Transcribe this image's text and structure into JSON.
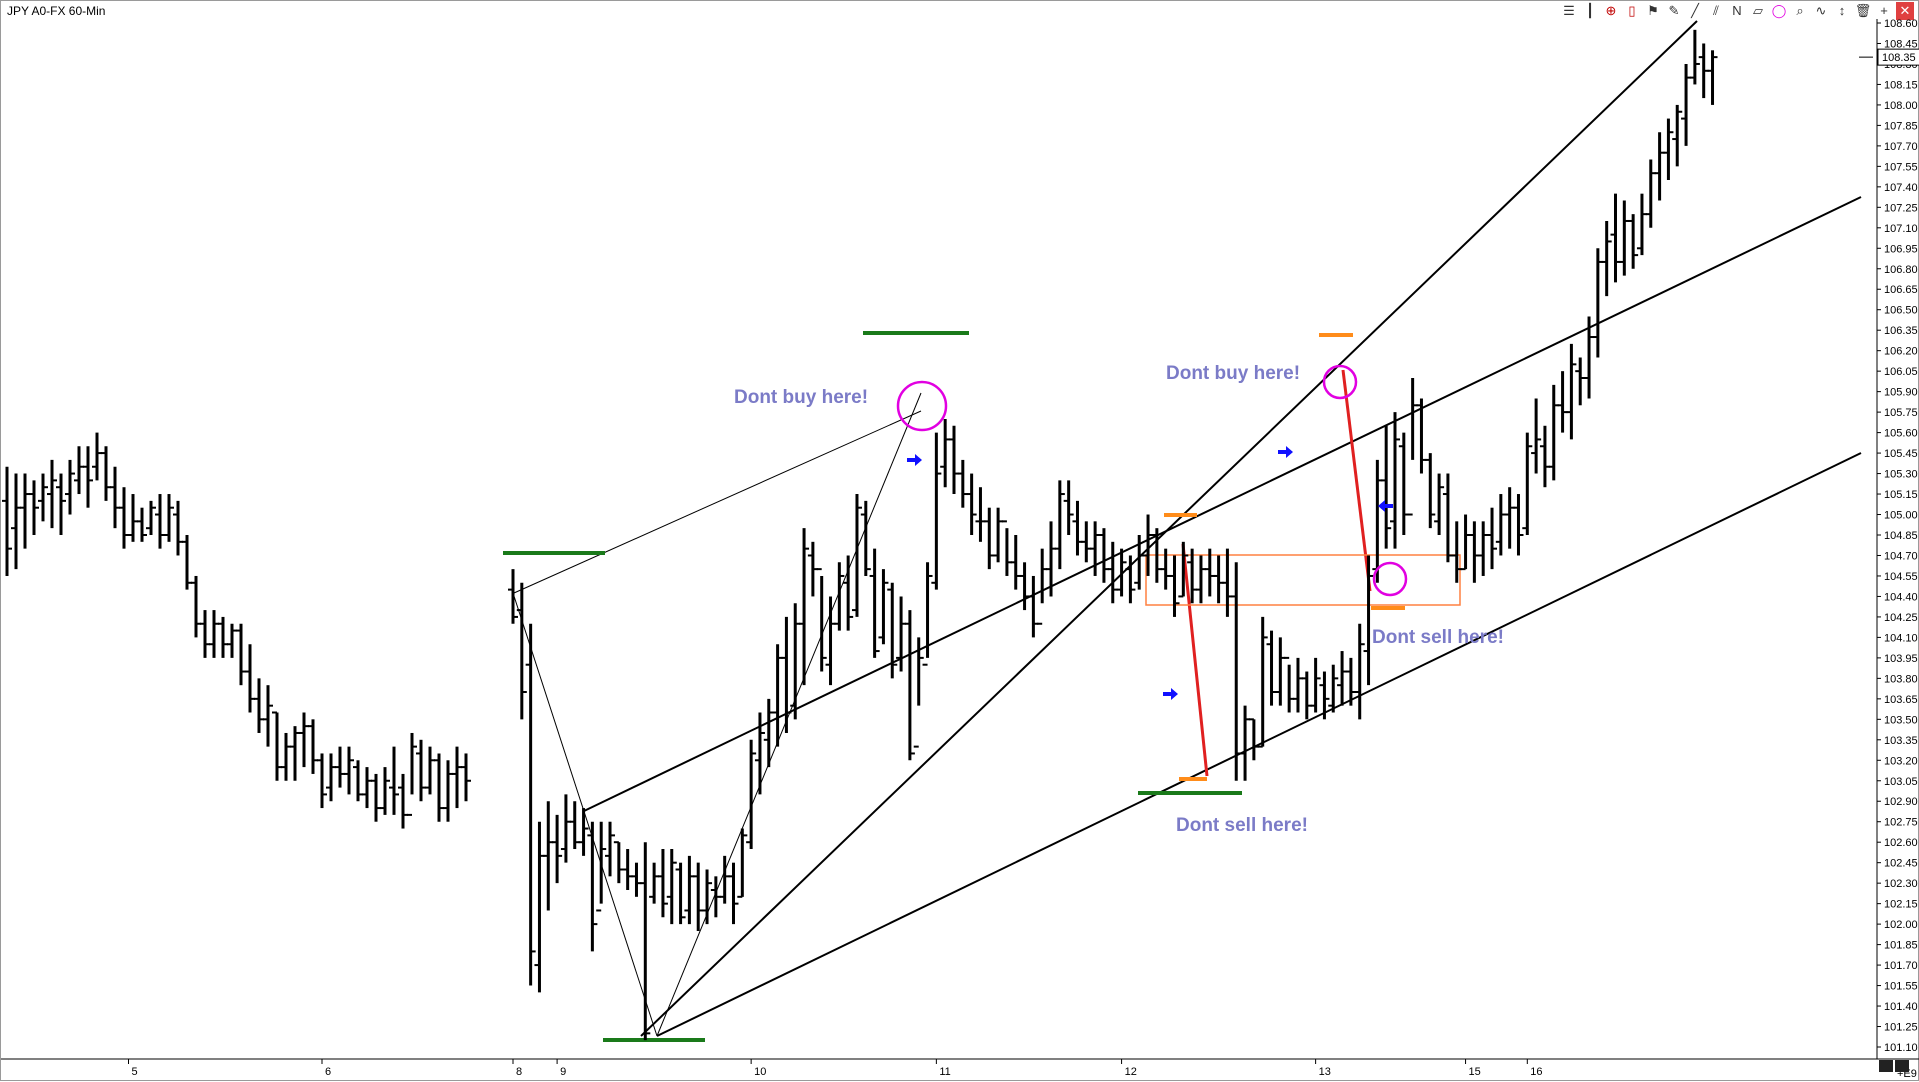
{
  "window": {
    "title": "JPY A0-FX 60-Min"
  },
  "toolbar": {
    "icons": [
      "stack-icon",
      "bar-icon",
      "crosshair-icon",
      "candle-icon",
      "flag-icon",
      "pencil-icon",
      "trendline-icon",
      "fib-icon",
      "n-icon",
      "channel-icon",
      "circle-icon",
      "zoom-icon",
      "wave-icon",
      "arrows-icon",
      "trash-icon",
      "zoom-in-icon",
      "close-icon"
    ],
    "glyphs": [
      "☰",
      "┃",
      "⊕",
      "▯",
      "⚑",
      "✎",
      "╱",
      "⫽",
      "N",
      "▱",
      "◯",
      "⌕",
      "∿",
      "↕",
      "🗑",
      "+",
      "✕"
    ]
  },
  "colors": {
    "bars": "#000000",
    "green_level": "#1a7a1a",
    "orange_level": "#ff8c1a",
    "circle": "#e100e1",
    "red_line": "#e02020",
    "arrow": "#1010ff",
    "annotation": "#7b7bc7",
    "box": "#ff8040",
    "current_price_bg": "#ffffff"
  },
  "chart_data": {
    "type": "ohlc_bar",
    "symbol": "JPY A0-FX",
    "interval": "60-Min",
    "ylim": [
      101.1,
      108.6
    ],
    "y_ticks": [
      "108.60",
      "108.45",
      "108.30",
      "108.15",
      "108.00",
      "107.85",
      "107.70",
      "107.55",
      "107.40",
      "107.25",
      "107.10",
      "106.95",
      "106.80",
      "106.65",
      "106.50",
      "106.35",
      "106.20",
      "106.05",
      "105.90",
      "105.75",
      "105.60",
      "105.45",
      "105.30",
      "105.15",
      "105.00",
      "104.85",
      "104.70",
      "104.55",
      "104.40",
      "104.25",
      "104.10",
      "103.95",
      "103.80",
      "103.65",
      "103.50",
      "103.35",
      "103.20",
      "103.05",
      "102.90",
      "102.75",
      "102.60",
      "102.45",
      "102.30",
      "102.15",
      "102.00",
      "101.85",
      "101.70",
      "101.55",
      "101.40",
      "101.25",
      "101.10"
    ],
    "y_tick_values": [
      108.6,
      108.45,
      108.3,
      108.15,
      108.0,
      107.85,
      107.7,
      107.55,
      107.4,
      107.25,
      107.1,
      106.95,
      106.8,
      106.65,
      106.5,
      106.35,
      106.2,
      106.05,
      105.9,
      105.75,
      105.6,
      105.45,
      105.3,
      105.15,
      105.0,
      104.85,
      104.7,
      104.55,
      104.4,
      104.25,
      104.1,
      103.95,
      103.8,
      103.65,
      103.5,
      103.35,
      103.2,
      103.05,
      102.9,
      102.75,
      102.6,
      102.45,
      102.3,
      102.15,
      102.0,
      101.85,
      101.7,
      101.55,
      101.4,
      101.25,
      101.1
    ],
    "last_price_label": "108.35",
    "last_price": 108.35,
    "x_labels": [
      "5",
      "6",
      "8",
      "9",
      "10",
      "11",
      "12",
      "13",
      "15",
      "16"
    ],
    "x_label_index": [
      13.5,
      35,
      52,
      57,
      79,
      100,
      121,
      143,
      160,
      167
    ],
    "x_range": [
      0,
      188
    ],
    "footer_label": "+E9",
    "bars": [
      [
        104.55,
        105.35,
        105.1,
        104.75
      ],
      [
        104.6,
        105.3,
        104.9,
        105.05
      ],
      [
        104.75,
        105.3,
        105.05,
        105.15
      ],
      [
        104.85,
        105.25,
        105.15,
        105.05
      ],
      [
        104.95,
        105.3,
        105.1,
        105.2
      ],
      [
        104.9,
        105.4,
        105.15,
        105.25
      ],
      [
        104.85,
        105.3,
        105.2,
        105.1
      ],
      [
        105.0,
        105.4,
        105.15,
        105.3
      ],
      [
        105.15,
        105.5,
        105.25,
        105.35
      ],
      [
        105.05,
        105.5,
        105.35,
        105.25
      ],
      [
        105.25,
        105.6,
        105.35,
        105.45
      ],
      [
        105.1,
        105.5,
        105.45,
        105.2
      ],
      [
        104.9,
        105.35,
        105.2,
        105.05
      ],
      [
        104.75,
        105.2,
        105.05,
        104.85
      ],
      [
        104.8,
        105.15,
        104.85,
        104.95
      ],
      [
        104.8,
        105.05,
        104.95,
        104.85
      ],
      [
        104.85,
        105.1,
        104.9,
        105.05
      ],
      [
        104.75,
        105.15,
        105.0,
        104.85
      ],
      [
        104.8,
        105.15,
        104.85,
        105.05
      ],
      [
        104.7,
        105.1,
        105.0,
        104.8
      ],
      [
        104.45,
        104.85,
        104.8,
        104.5
      ],
      [
        104.1,
        104.55,
        104.5,
        104.2
      ],
      [
        103.95,
        104.3,
        104.2,
        104.05
      ],
      [
        103.95,
        104.3,
        104.05,
        104.2
      ],
      [
        103.95,
        104.25,
        104.2,
        104.05
      ],
      [
        103.95,
        104.2,
        104.05,
        104.15
      ],
      [
        103.75,
        104.2,
        104.15,
        103.85
      ],
      [
        103.55,
        104.05,
        103.85,
        103.65
      ],
      [
        103.4,
        103.8,
        103.65,
        103.5
      ],
      [
        103.3,
        103.75,
        103.5,
        103.6
      ],
      [
        103.05,
        103.55,
        103.55,
        103.15
      ],
      [
        103.05,
        103.4,
        103.15,
        103.3
      ],
      [
        103.05,
        103.45,
        103.3,
        103.4
      ],
      [
        103.15,
        103.55,
        103.4,
        103.45
      ],
      [
        103.1,
        103.5,
        103.45,
        103.2
      ],
      [
        102.85,
        103.25,
        103.2,
        102.95
      ],
      [
        102.9,
        103.25,
        103.0,
        103.15
      ],
      [
        103.0,
        103.3,
        103.15,
        103.1
      ],
      [
        102.95,
        103.3,
        103.1,
        103.2
      ],
      [
        102.9,
        103.2,
        103.15,
        102.95
      ],
      [
        102.85,
        103.15,
        102.95,
        103.05
      ],
      [
        102.75,
        103.1,
        103.05,
        102.85
      ],
      [
        102.8,
        103.15,
        102.85,
        103.05
      ],
      [
        102.8,
        103.3,
        103.0,
        102.95
      ],
      [
        102.7,
        103.1,
        103.0,
        102.8
      ],
      [
        102.95,
        103.4,
        102.8,
        103.3
      ],
      [
        102.9,
        103.35,
        103.25,
        103.0
      ],
      [
        102.95,
        103.3,
        103.0,
        103.2
      ],
      [
        102.75,
        103.25,
        103.2,
        102.85
      ],
      [
        102.75,
        103.2,
        102.85,
        103.1
      ],
      [
        102.85,
        103.3,
        103.1,
        103.15
      ],
      [
        102.9,
        103.25,
        103.15,
        103.05
      ],
      [
        104.2,
        104.6,
        104.45,
        104.25
      ],
      [
        103.5,
        104.5,
        104.3,
        103.7
      ],
      [
        101.55,
        104.2,
        103.9,
        101.8
      ],
      [
        101.5,
        102.75,
        101.7,
        102.5
      ],
      [
        102.1,
        102.9,
        102.5,
        102.6
      ],
      [
        102.3,
        102.8,
        102.6,
        102.5
      ],
      [
        102.45,
        102.95,
        102.55,
        102.75
      ],
      [
        102.55,
        102.9,
        102.75,
        102.6
      ],
      [
        102.5,
        102.85,
        102.6,
        102.7
      ],
      [
        101.8,
        102.75,
        102.65,
        102.0
      ],
      [
        102.15,
        102.75,
        102.1,
        102.55
      ],
      [
        102.35,
        102.75,
        102.5,
        102.65
      ],
      [
        102.3,
        102.6,
        102.6,
        102.4
      ],
      [
        102.25,
        102.55,
        102.4,
        102.35
      ],
      [
        102.2,
        102.45,
        102.35,
        102.3
      ],
      [
        101.15,
        102.6,
        102.3,
        101.2
      ],
      [
        102.15,
        102.45,
        102.2,
        102.35
      ],
      [
        102.05,
        102.55,
        102.35,
        102.15
      ],
      [
        102.0,
        102.55,
        102.2,
        102.45
      ],
      [
        102.0,
        102.45,
        102.4,
        102.05
      ],
      [
        102.0,
        102.5,
        102.1,
        102.35
      ],
      [
        101.95,
        102.45,
        102.35,
        102.1
      ],
      [
        102.0,
        102.4,
        102.1,
        102.3
      ],
      [
        102.05,
        102.35,
        102.25,
        102.2
      ],
      [
        102.15,
        102.5,
        102.2,
        102.35
      ],
      [
        102.0,
        102.45,
        102.35,
        102.15
      ],
      [
        102.2,
        102.7,
        102.2,
        102.65
      ],
      [
        102.55,
        103.35,
        102.6,
        103.25
      ],
      [
        102.95,
        103.55,
        103.2,
        103.4
      ],
      [
        103.15,
        103.65,
        103.35,
        103.55
      ],
      [
        103.3,
        104.05,
        103.55,
        103.95
      ],
      [
        103.4,
        104.25,
        103.95,
        103.55
      ],
      [
        103.5,
        104.35,
        103.6,
        104.2
      ],
      [
        103.75,
        104.9,
        104.2,
        104.75
      ],
      [
        104.4,
        104.8,
        104.7,
        104.6
      ],
      [
        103.85,
        104.55,
        104.6,
        103.95
      ],
      [
        103.75,
        104.4,
        103.9,
        104.2
      ],
      [
        104.15,
        104.65,
        104.2,
        104.55
      ],
      [
        104.15,
        104.7,
        104.5,
        104.25
      ],
      [
        104.25,
        105.15,
        104.3,
        105.05
      ],
      [
        104.55,
        105.1,
        105.0,
        104.6
      ],
      [
        103.95,
        104.75,
        104.55,
        104.0
      ],
      [
        104.05,
        104.6,
        104.1,
        104.5
      ],
      [
        103.8,
        104.5,
        104.45,
        103.9
      ],
      [
        103.85,
        104.4,
        103.95,
        104.2
      ],
      [
        103.2,
        104.3,
        104.2,
        103.25
      ],
      [
        103.6,
        104.1,
        103.3,
        103.95
      ],
      [
        103.95,
        104.65,
        103.9,
        104.55
      ],
      [
        104.45,
        105.6,
        104.5,
        105.3
      ],
      [
        105.2,
        105.7,
        105.35,
        105.55
      ],
      [
        105.15,
        105.65,
        105.55,
        105.3
      ],
      [
        105.05,
        105.4,
        105.3,
        105.15
      ],
      [
        104.85,
        105.3,
        105.15,
        105.0
      ],
      [
        104.8,
        105.2,
        104.95,
        104.95
      ],
      [
        104.6,
        105.05,
        104.95,
        104.7
      ],
      [
        104.65,
        105.05,
        104.7,
        104.95
      ],
      [
        104.55,
        104.9,
        104.95,
        104.65
      ],
      [
        104.45,
        104.85,
        104.65,
        104.55
      ],
      [
        104.3,
        104.65,
        104.55,
        104.4
      ],
      [
        104.1,
        104.55,
        104.4,
        104.2
      ],
      [
        104.35,
        104.75,
        104.2,
        104.6
      ],
      [
        104.4,
        104.95,
        104.6,
        104.75
      ],
      [
        104.6,
        105.25,
        104.75,
        105.15
      ],
      [
        104.85,
        105.25,
        105.1,
        105.0
      ],
      [
        104.7,
        105.1,
        104.95,
        104.8
      ],
      [
        104.65,
        104.95,
        104.8,
        104.75
      ],
      [
        104.55,
        104.95,
        104.75,
        104.85
      ],
      [
        104.5,
        104.9,
        104.85,
        104.6
      ],
      [
        104.35,
        104.8,
        104.6,
        104.45
      ],
      [
        104.4,
        104.75,
        104.45,
        104.65
      ],
      [
        104.35,
        104.7,
        104.6,
        104.45
      ],
      [
        104.45,
        104.85,
        104.5,
        104.7
      ],
      [
        104.55,
        105.0,
        104.7,
        104.85
      ],
      [
        104.5,
        104.9,
        104.85,
        104.6
      ],
      [
        104.45,
        104.75,
        104.6,
        104.55
      ],
      [
        104.25,
        104.7,
        104.55,
        104.35
      ],
      [
        104.4,
        104.8,
        104.4,
        104.7
      ],
      [
        104.35,
        104.75,
        104.65,
        104.45
      ],
      [
        104.35,
        104.7,
        104.45,
        104.6
      ],
      [
        104.4,
        104.75,
        104.6,
        104.55
      ],
      [
        104.35,
        104.7,
        104.55,
        104.5
      ],
      [
        104.25,
        104.75,
        104.5,
        104.4
      ],
      [
        103.05,
        104.65,
        104.4,
        103.25
      ],
      [
        103.05,
        103.6,
        103.25,
        103.5
      ],
      [
        103.2,
        103.5,
        103.5,
        103.3
      ],
      [
        103.3,
        104.25,
        103.3,
        104.1
      ],
      [
        103.6,
        104.15,
        104.05,
        103.7
      ],
      [
        103.6,
        104.1,
        103.7,
        103.95
      ],
      [
        103.55,
        103.9,
        103.95,
        103.65
      ],
      [
        103.55,
        103.95,
        103.65,
        103.8
      ],
      [
        103.5,
        103.85,
        103.8,
        103.6
      ],
      [
        103.55,
        103.95,
        103.6,
        103.8
      ],
      [
        103.5,
        103.85,
        103.75,
        103.65
      ],
      [
        103.55,
        103.9,
        103.6,
        103.8
      ],
      [
        103.6,
        104.0,
        103.75,
        103.85
      ],
      [
        103.6,
        103.95,
        103.85,
        103.7
      ],
      [
        103.5,
        104.2,
        103.7,
        104.05
      ],
      [
        103.75,
        104.7,
        104.0,
        104.55
      ],
      [
        104.5,
        105.4,
        104.6,
        105.25
      ],
      [
        104.75,
        105.65,
        105.25,
        104.9
      ],
      [
        104.75,
        105.75,
        104.95,
        105.55
      ],
      [
        104.85,
        105.6,
        105.5,
        105.0
      ],
      [
        105.4,
        106.0,
        105.0,
        105.8
      ],
      [
        105.3,
        105.85,
        105.8,
        105.4
      ],
      [
        104.9,
        105.45,
        105.4,
        105.0
      ],
      [
        104.85,
        105.3,
        104.95,
        105.2
      ],
      [
        104.65,
        105.3,
        105.15,
        104.7
      ],
      [
        104.5,
        104.95,
        104.7,
        104.6
      ],
      [
        104.6,
        105.0,
        104.6,
        104.85
      ],
      [
        104.5,
        104.95,
        104.85,
        104.7
      ],
      [
        104.55,
        104.95,
        104.7,
        104.85
      ],
      [
        104.6,
        105.05,
        104.85,
        104.75
      ],
      [
        104.7,
        105.15,
        104.8,
        105.0
      ],
      [
        104.75,
        105.2,
        105.0,
        105.05
      ],
      [
        104.7,
        105.15,
        105.05,
        104.85
      ],
      [
        104.85,
        105.6,
        104.9,
        105.5
      ],
      [
        105.3,
        105.85,
        105.45,
        105.55
      ],
      [
        105.2,
        105.65,
        105.5,
        105.35
      ],
      [
        105.25,
        105.95,
        105.35,
        105.8
      ],
      [
        105.6,
        106.05,
        105.8,
        105.75
      ],
      [
        105.55,
        106.25,
        105.75,
        106.1
      ],
      [
        105.8,
        106.15,
        106.05,
        106.0
      ],
      [
        105.85,
        106.45,
        106.0,
        106.3
      ],
      [
        106.15,
        106.95,
        106.3,
        106.85
      ],
      [
        106.6,
        107.15,
        106.85,
        107.0
      ],
      [
        106.7,
        107.35,
        107.05,
        106.85
      ],
      [
        106.75,
        107.3,
        106.85,
        107.15
      ],
      [
        106.8,
        107.2,
        107.15,
        106.9
      ],
      [
        106.9,
        107.35,
        106.95,
        107.2
      ],
      [
        107.1,
        107.6,
        107.2,
        107.5
      ],
      [
        107.3,
        107.8,
        107.5,
        107.65
      ],
      [
        107.45,
        107.9,
        107.65,
        107.8
      ],
      [
        107.55,
        108.0,
        107.75,
        107.95
      ],
      [
        107.7,
        108.3,
        107.9,
        108.2
      ],
      [
        108.15,
        108.55,
        108.2,
        108.3
      ],
      [
        108.05,
        108.45,
        108.35,
        108.25
      ],
      [
        108.0,
        108.4,
        108.25,
        108.35
      ]
    ]
  },
  "overlays": {
    "annotations": [
      "Dont buy here!",
      "Dont buy here!",
      "Dont sell here!",
      "Dont sell here!"
    ]
  }
}
